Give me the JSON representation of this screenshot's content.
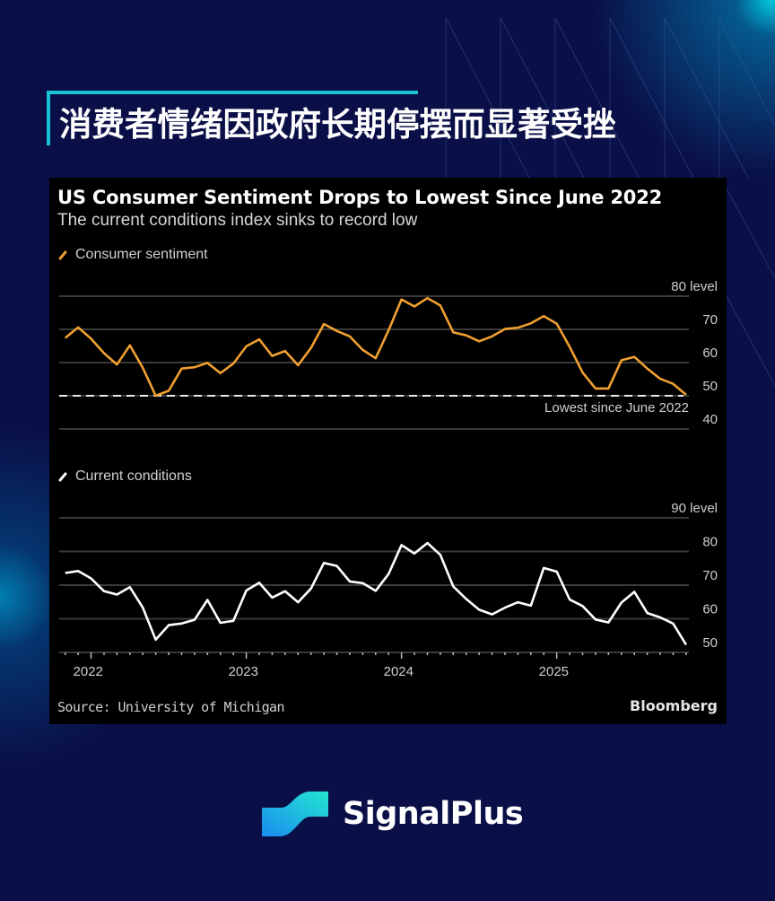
{
  "headline": "消费者情绪因政府长期停摆而显著受挫",
  "chart_panel": {
    "title": "US Consumer Sentiment Drops to Lowest Since June 2022",
    "subtitle": "The current conditions index sinks to record low",
    "source": "Source: University of Michigan",
    "brand": "Bloomberg"
  },
  "brand_logo": {
    "text": "SignalPlus",
    "icon": "signalplus-wave-logo-icon"
  },
  "colors": {
    "background": "#0a0f47",
    "accent": "#19c3d6",
    "sentiment_line": "#f0a030",
    "conditions_line": "#ffffff",
    "panel": "#000000"
  },
  "chart_data": [
    {
      "type": "line",
      "title": "US Consumer Sentiment Drops to Lowest Since June 2022",
      "subtitle": "The current conditions index sinks to record low",
      "series_name": "Consumer sentiment",
      "legend_label": "Consumer sentiment",
      "color": "#f0a030",
      "y_axis_side": "right",
      "ylim": [
        40,
        80
      ],
      "yticks": [
        "80 level",
        "70",
        "60",
        "50",
        "40"
      ],
      "annotation": {
        "type": "dashed-hline",
        "y": 50.0,
        "label": "Lowest since June 2022"
      },
      "x": [
        "2021-11",
        "2021-12",
        "2022-01",
        "2022-02",
        "2022-03",
        "2022-04",
        "2022-05",
        "2022-06",
        "2022-07",
        "2022-08",
        "2022-09",
        "2022-10",
        "2022-11",
        "2022-12",
        "2023-01",
        "2023-02",
        "2023-03",
        "2023-04",
        "2023-05",
        "2023-06",
        "2023-07",
        "2023-08",
        "2023-09",
        "2023-10",
        "2023-11",
        "2023-12",
        "2024-01",
        "2024-02",
        "2024-03",
        "2024-04",
        "2024-05",
        "2024-06",
        "2024-07",
        "2024-08",
        "2024-09",
        "2024-10",
        "2024-11",
        "2024-12",
        "2025-01",
        "2025-02",
        "2025-03",
        "2025-04",
        "2025-05",
        "2025-06",
        "2025-07",
        "2025-08",
        "2025-09",
        "2025-10",
        "2025-11"
      ],
      "values": [
        67.4,
        70.6,
        67.2,
        62.8,
        59.4,
        65.2,
        58.4,
        50.0,
        51.5,
        58.2,
        58.6,
        59.9,
        56.8,
        59.7,
        64.9,
        67.0,
        62.0,
        63.5,
        59.2,
        64.4,
        71.6,
        69.5,
        67.9,
        63.8,
        61.3,
        69.7,
        79.0,
        76.9,
        79.4,
        77.2,
        69.1,
        68.2,
        66.4,
        67.9,
        70.1,
        70.5,
        71.8,
        74.0,
        71.7,
        64.7,
        57.0,
        52.2,
        52.2,
        60.7,
        61.7,
        58.2,
        55.1,
        53.6,
        50.3
      ]
    },
    {
      "type": "line",
      "series_name": "Current conditions",
      "legend_label": "Current conditions",
      "color": "#ffffff",
      "y_axis_side": "right",
      "ylim": [
        50,
        90
      ],
      "yticks": [
        "90 level",
        "80",
        "70",
        "60",
        "50"
      ],
      "xticks": [
        "2022",
        "2023",
        "2024",
        "2025"
      ],
      "x": [
        "2021-11",
        "2021-12",
        "2022-01",
        "2022-02",
        "2022-03",
        "2022-04",
        "2022-05",
        "2022-06",
        "2022-07",
        "2022-08",
        "2022-09",
        "2022-10",
        "2022-11",
        "2022-12",
        "2023-01",
        "2023-02",
        "2023-03",
        "2023-04",
        "2023-05",
        "2023-06",
        "2023-07",
        "2023-08",
        "2023-09",
        "2023-10",
        "2023-11",
        "2023-12",
        "2024-01",
        "2024-02",
        "2024-03",
        "2024-04",
        "2024-05",
        "2024-06",
        "2024-07",
        "2024-08",
        "2024-09",
        "2024-10",
        "2024-11",
        "2024-12",
        "2025-01",
        "2025-02",
        "2025-03",
        "2025-04",
        "2025-05",
        "2025-06",
        "2025-07",
        "2025-08",
        "2025-09",
        "2025-10",
        "2025-11"
      ],
      "values": [
        73.6,
        74.2,
        72.0,
        68.2,
        67.2,
        69.4,
        63.3,
        53.8,
        58.1,
        58.6,
        59.7,
        65.6,
        58.8,
        59.4,
        68.4,
        70.7,
        66.3,
        68.2,
        64.9,
        69.0,
        76.6,
        75.7,
        71.1,
        70.6,
        68.3,
        73.3,
        81.9,
        79.4,
        82.5,
        79.0,
        69.6,
        65.9,
        62.7,
        61.3,
        63.3,
        64.9,
        63.9,
        75.1,
        74.0,
        65.7,
        63.8,
        59.8,
        58.9,
        64.8,
        68.0,
        61.7,
        60.4,
        58.6,
        52.3
      ]
    }
  ]
}
